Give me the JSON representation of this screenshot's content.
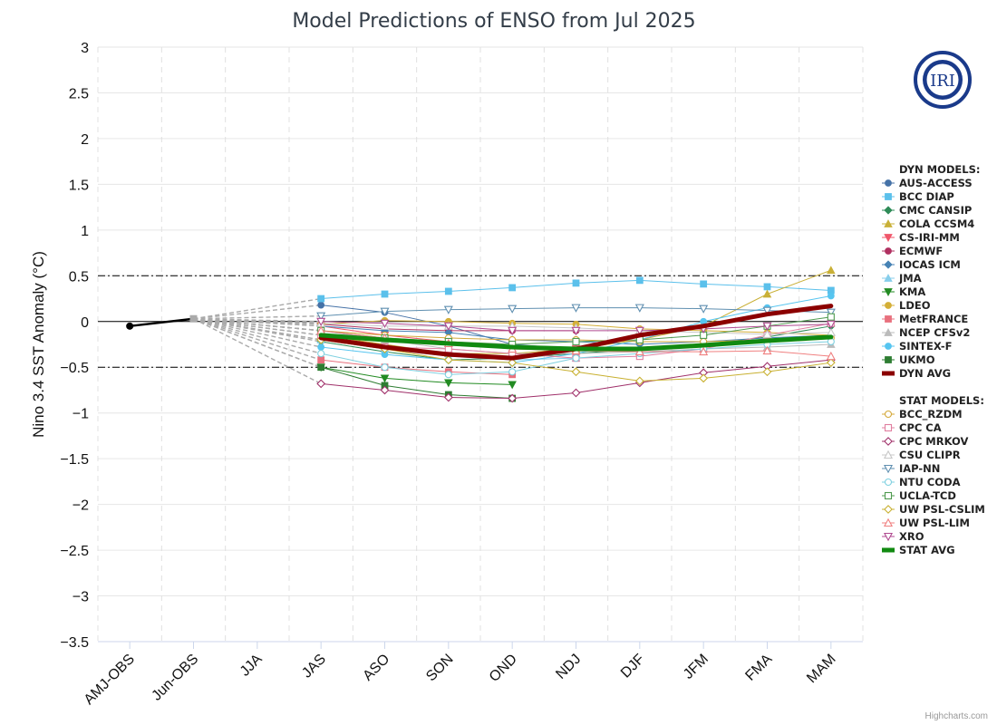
{
  "chart_data": {
    "type": "line",
    "title": "Model Predictions of ENSO from Jul 2025",
    "ylabel": "Nino 3.4 SST Anomaly (°C)",
    "xlabel": "",
    "ylim": [
      -3.5,
      3
    ],
    "yticks": [
      "3",
      "2.5",
      "2",
      "1.5",
      "1",
      "0.5",
      "0",
      "−0.5",
      "−1",
      "−1.5",
      "−2",
      "−2.5",
      "−3",
      "−3.5"
    ],
    "ytick_values": [
      3,
      2.5,
      2,
      1.5,
      1,
      0.5,
      0,
      -0.5,
      -1,
      -1.5,
      -2,
      -2.5,
      -3,
      -3.5
    ],
    "categories": [
      "AMJ-OBS",
      "Jun-OBS",
      "JJA",
      "JAS",
      "ASO",
      "SON",
      "OND",
      "NDJ",
      "DJF",
      "JFM",
      "FMA",
      "MAM"
    ],
    "reference_lines": [
      0.5,
      -0.5
    ],
    "grid": true,
    "legend_position": "right",
    "observed": {
      "color": "#000000",
      "values": [
        -0.05,
        0.03
      ]
    },
    "legend_dyn_header": "DYN MODELS:",
    "legend_stat_header": "STAT MODELS:",
    "series": [
      {
        "name": "AUS-ACCESS",
        "group": "dyn",
        "color": "#4572a7",
        "marker": "circle",
        "filled": true,
        "values": [
          null,
          null,
          null,
          0.18,
          0.1,
          -0.05,
          -0.25,
          -0.3,
          null,
          null,
          null,
          null
        ]
      },
      {
        "name": "BCC DIAP",
        "group": "dyn",
        "color": "#5bc0eb",
        "marker": "square",
        "filled": true,
        "values": [
          null,
          null,
          null,
          0.25,
          0.3,
          0.33,
          0.37,
          0.42,
          0.45,
          0.41,
          0.38,
          0.34
        ]
      },
      {
        "name": "CMC CANSIP",
        "group": "dyn",
        "color": "#2e8b57",
        "marker": "diamond",
        "filled": true,
        "values": [
          null,
          null,
          null,
          -0.22,
          -0.33,
          -0.42,
          -0.4,
          -0.35,
          -0.3,
          -0.25,
          -0.17,
          -0.05
        ]
      },
      {
        "name": "COLA CCSM4",
        "group": "dyn",
        "color": "#c9b037",
        "marker": "triangle",
        "filled": true,
        "values": [
          null,
          null,
          null,
          -0.15,
          -0.25,
          -0.35,
          -0.35,
          -0.3,
          -0.2,
          -0.05,
          0.3,
          0.56
        ]
      },
      {
        "name": "CS-IRI-MM",
        "group": "dyn",
        "color": "#f0566a",
        "marker": "triangle-down",
        "filled": true,
        "values": [
          null,
          null,
          null,
          -0.05,
          -0.15,
          -0.22,
          -0.28,
          -0.3,
          null,
          null,
          null,
          null
        ]
      },
      {
        "name": "ECMWF",
        "group": "dyn",
        "color": "#b03060",
        "marker": "circle",
        "filled": true,
        "values": [
          null,
          null,
          null,
          -0.03,
          -0.08,
          -0.1,
          -0.1,
          -0.1,
          null,
          null,
          null,
          null
        ]
      },
      {
        "name": "IOCAS ICM",
        "group": "dyn",
        "color": "#4682b4",
        "marker": "diamond",
        "filled": true,
        "values": [
          null,
          null,
          null,
          -0.05,
          -0.1,
          -0.12,
          -0.2,
          -0.22,
          -0.25,
          -0.22,
          -0.18,
          -0.15
        ]
      },
      {
        "name": "JMA",
        "group": "dyn",
        "color": "#87ceeb",
        "marker": "triangle",
        "filled": true,
        "values": [
          null,
          null,
          null,
          -0.2,
          -0.3,
          -0.38,
          -0.42,
          -0.4,
          null,
          null,
          null,
          null
        ]
      },
      {
        "name": "KMA",
        "group": "dyn",
        "color": "#228b22",
        "marker": "triangle-down",
        "filled": true,
        "values": [
          null,
          null,
          null,
          -0.5,
          -0.62,
          -0.67,
          -0.69,
          null,
          null,
          null,
          null,
          null
        ]
      },
      {
        "name": "LDEO",
        "group": "dyn",
        "color": "#d4af37",
        "marker": "circle",
        "filled": true,
        "values": [
          null,
          null,
          null,
          -0.03,
          0.01,
          0.0,
          -0.02,
          -0.03,
          -0.08,
          -0.1,
          -0.12,
          -0.15
        ]
      },
      {
        "name": "MetFRANCE",
        "group": "dyn",
        "color": "#e8707d",
        "marker": "square",
        "filled": true,
        "values": [
          null,
          null,
          null,
          -0.42,
          -0.5,
          -0.55,
          -0.58,
          null,
          null,
          null,
          null,
          null
        ]
      },
      {
        "name": "NCEP CFSv2",
        "group": "dyn",
        "color": "#bbbbbb",
        "marker": "triangle",
        "filled": true,
        "values": [
          null,
          null,
          null,
          -0.1,
          -0.2,
          -0.3,
          -0.35,
          -0.35,
          -0.33,
          -0.3,
          -0.28,
          -0.25
        ]
      },
      {
        "name": "SINTEX-F",
        "group": "dyn",
        "color": "#56c5f0",
        "marker": "circle",
        "filled": true,
        "values": [
          null,
          null,
          null,
          -0.28,
          -0.36,
          -0.42,
          -0.45,
          -0.35,
          -0.2,
          0.0,
          0.15,
          0.28
        ]
      },
      {
        "name": "UKMO",
        "group": "dyn",
        "color": "#2e7d32",
        "marker": "square",
        "filled": true,
        "values": [
          null,
          null,
          null,
          -0.5,
          -0.7,
          -0.8,
          -0.84,
          null,
          null,
          null,
          null,
          null
        ]
      },
      {
        "name": "DYN AVG",
        "group": "dyn",
        "color": "#8b0000",
        "marker": "none",
        "filled": true,
        "thick": true,
        "values": [
          null,
          null,
          null,
          -0.18,
          -0.28,
          -0.36,
          -0.4,
          -0.3,
          -0.15,
          -0.05,
          0.08,
          0.17
        ]
      },
      {
        "name": "BCC_RZDM",
        "group": "stat",
        "color": "#d4a838",
        "marker": "circle",
        "filled": false,
        "values": [
          null,
          null,
          null,
          -0.1,
          -0.15,
          -0.18,
          -0.2,
          -0.2,
          -0.22,
          -0.22,
          -0.2,
          -0.18
        ]
      },
      {
        "name": "CPC CA",
        "group": "stat",
        "color": "#e07fa0",
        "marker": "square",
        "filled": false,
        "values": [
          null,
          null,
          null,
          -0.15,
          -0.28,
          -0.3,
          -0.35,
          -0.4,
          -0.38,
          -0.3,
          -0.15,
          -0.02
        ]
      },
      {
        "name": "CPC MRKOV",
        "group": "stat",
        "color": "#a0306a",
        "marker": "diamond",
        "filled": false,
        "values": [
          null,
          null,
          null,
          -0.68,
          -0.75,
          -0.83,
          -0.84,
          -0.78,
          -0.67,
          -0.56,
          -0.49,
          -0.42
        ]
      },
      {
        "name": "CSU CLIPR",
        "group": "stat",
        "color": "#c8c8c8",
        "marker": "triangle",
        "filled": false,
        "values": [
          null,
          null,
          null,
          -0.02,
          -0.05,
          -0.05,
          -0.05,
          -0.07,
          -0.1,
          -0.12,
          -0.14,
          -0.12
        ]
      },
      {
        "name": "IAP-NN",
        "group": "stat",
        "color": "#5f8fb0",
        "marker": "triangle-down",
        "filled": false,
        "values": [
          null,
          null,
          null,
          0.06,
          0.11,
          0.13,
          0.14,
          0.15,
          0.15,
          0.14,
          0.12,
          0.1
        ]
      },
      {
        "name": "NTU CODA",
        "group": "stat",
        "color": "#7fd0e0",
        "marker": "circle",
        "filled": false,
        "values": [
          null,
          null,
          null,
          -0.35,
          -0.5,
          -0.58,
          -0.55,
          -0.4,
          -0.35,
          -0.3,
          -0.25,
          -0.22
        ]
      },
      {
        "name": "UCLA-TCD",
        "group": "stat",
        "color": "#4f9a4f",
        "marker": "square",
        "filled": false,
        "values": [
          null,
          null,
          null,
          -0.1,
          -0.18,
          -0.22,
          -0.25,
          -0.22,
          -0.2,
          -0.15,
          -0.05,
          0.05
        ]
      },
      {
        "name": "UW PSL-CSLIM",
        "group": "stat",
        "color": "#c8b030",
        "marker": "diamond",
        "filled": false,
        "values": [
          null,
          null,
          null,
          -0.2,
          -0.3,
          -0.42,
          -0.45,
          -0.55,
          -0.65,
          -0.62,
          -0.55,
          -0.45
        ]
      },
      {
        "name": "UW PSL-LIM",
        "group": "stat",
        "color": "#f08080",
        "marker": "triangle",
        "filled": false,
        "values": [
          null,
          null,
          null,
          -0.1,
          -0.18,
          -0.24,
          -0.3,
          -0.32,
          -0.33,
          -0.33,
          -0.32,
          -0.38
        ]
      },
      {
        "name": "XRO",
        "group": "stat",
        "color": "#b04a90",
        "marker": "triangle-down",
        "filled": false,
        "values": [
          null,
          null,
          null,
          0.0,
          -0.02,
          -0.05,
          -0.1,
          -0.1,
          -0.1,
          -0.08,
          -0.05,
          -0.03
        ]
      },
      {
        "name": "STAT AVG",
        "group": "stat",
        "color": "#118a11",
        "marker": "none",
        "filled": true,
        "thick": true,
        "values": [
          null,
          null,
          null,
          -0.15,
          -0.2,
          -0.24,
          -0.28,
          -0.3,
          -0.3,
          -0.26,
          -0.21,
          -0.17
        ]
      }
    ]
  },
  "logo": {
    "text": "IRI",
    "color": "#1a3a8a"
  },
  "credit": "Highcharts.com"
}
